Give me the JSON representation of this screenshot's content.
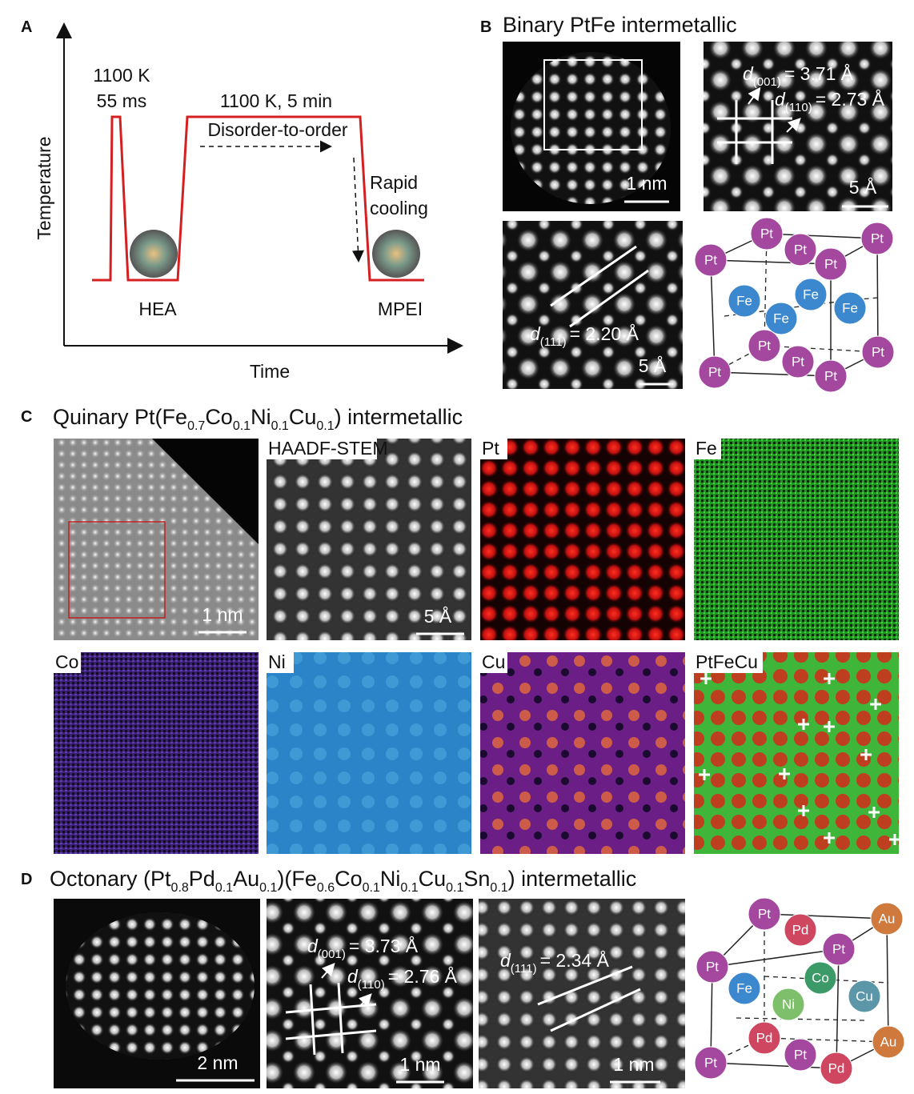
{
  "panel_a": {
    "label": "A",
    "y_axis": "Temperature",
    "x_axis": "Time",
    "pulse": [
      "1100 K",
      "55 ms"
    ],
    "anneal": "1100 K, 5 min",
    "process": "Disorder-to-order",
    "cooling": [
      "Rapid",
      "cooling"
    ],
    "start": "HEA",
    "end": "MPEI"
  },
  "panel_b": {
    "label": "B",
    "title": "Binary PtFe intermetallic",
    "scale_bars": [
      "1 nm",
      "5 Å",
      "5 Å"
    ],
    "spacings": [
      {
        "symbol": "d",
        "index": "(001)",
        "value": "= 3.71 Å"
      },
      {
        "symbol": "d",
        "index": "(110)",
        "value": "= 2.73 Å"
      },
      {
        "symbol": "d",
        "index": "(111)",
        "value": "= 2.20 Å"
      }
    ],
    "atoms": [
      "Pt",
      "Pt",
      "Pt",
      "Pt",
      "Pt",
      "Fe",
      "Fe",
      "Fe",
      "Fe",
      "Pt",
      "Pt",
      "Pt",
      "Pt",
      "Pt"
    ]
  },
  "panel_c": {
    "label": "C",
    "title": [
      "Quinary Pt(Fe",
      "0.7",
      "Co",
      "0.1",
      "Ni",
      "0.1",
      "Cu",
      "0.1",
      ") intermetallic"
    ],
    "maps": [
      "HAADF-STEM",
      "Pt",
      "Fe",
      "Co",
      "Ni",
      "Cu",
      "PtFeCu"
    ],
    "scale_bars": [
      "1 nm",
      "5 Å"
    ]
  },
  "panel_d": {
    "label": "D",
    "title": [
      "Octonary (Pt",
      "0.8",
      "Pd",
      "0.1",
      "Au",
      "0.1",
      ")(Fe",
      "0.6",
      "Co",
      "0.1",
      "Ni",
      "0.1",
      "Cu",
      "0.1",
      "Sn",
      "0.1",
      ") intermetallic"
    ],
    "scale_bars": [
      "2 nm",
      "1 nm",
      "1 nm"
    ],
    "spacings": [
      {
        "symbol": "d",
        "index": "(001)",
        "value": "= 3.73 Å"
      },
      {
        "symbol": "d",
        "index": "(110)",
        "value": "= 2.76 Å"
      },
      {
        "symbol": "d",
        "index": "(111)",
        "value": "= 2.34 Å"
      }
    ],
    "atoms": [
      "Pt",
      "Au",
      "Pd",
      "Pt",
      "Pt",
      "Fe",
      "Co",
      "Cu",
      "Ni",
      "Pd",
      "Au",
      "Pt",
      "Pd",
      "Pt"
    ]
  }
}
